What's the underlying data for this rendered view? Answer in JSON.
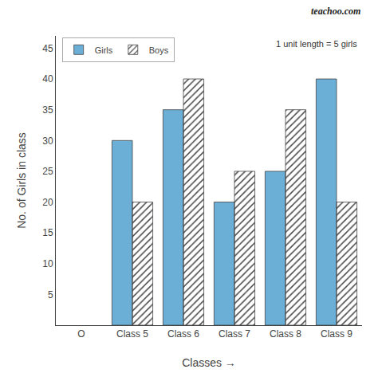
{
  "chart_data": {
    "type": "bar",
    "categories": [
      "O",
      "Class 5",
      "Class 6",
      "Class 7",
      "Class 8",
      "Class 9"
    ],
    "series": [
      {
        "name": "Girls",
        "color": "#6baed6",
        "values": [
          null,
          30,
          35,
          20,
          25,
          40
        ]
      },
      {
        "name": "Boys",
        "color": "#6baed6",
        "values": [
          null,
          20,
          40,
          25,
          35,
          20
        ]
      }
    ],
    "xlabel": "Classes →",
    "ylabel": "No. of Girls in class",
    "annotations": [
      "1 unit length = 5 girls",
      "teachoo.com"
    ],
    "ylim": [
      0,
      47
    ],
    "yticks": [
      5,
      10,
      15,
      20,
      25,
      30,
      35,
      40,
      45
    ],
    "grid": false,
    "legend": "upper left"
  }
}
